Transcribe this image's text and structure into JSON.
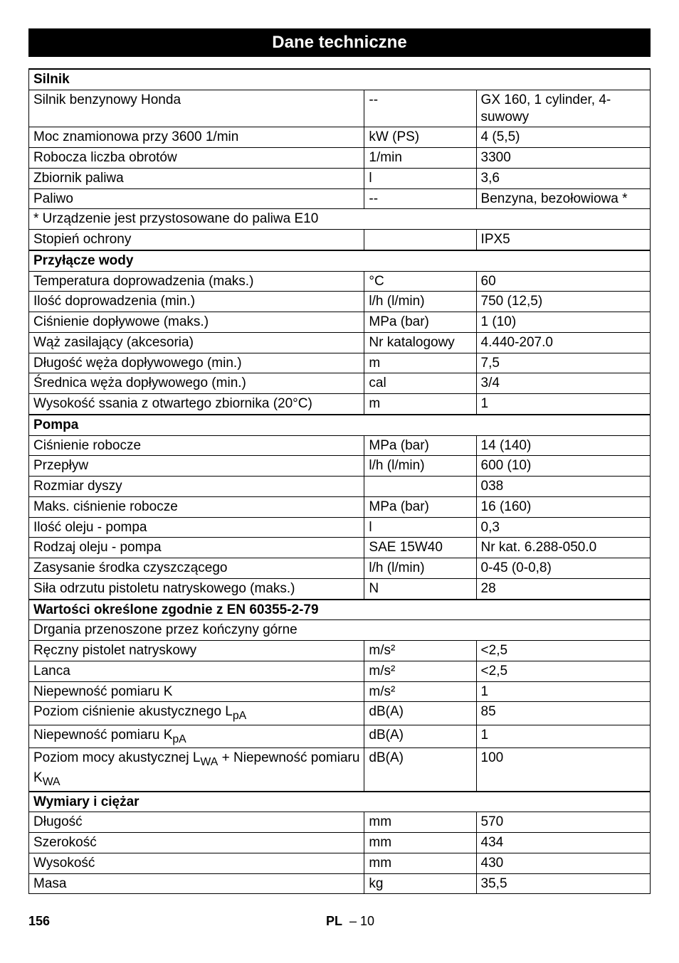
{
  "title": "Dane techniczne",
  "footer": {
    "page": "156",
    "lang": "PL",
    "langpage": "– 10"
  },
  "sections": [
    {
      "header": "Silnik",
      "rows": [
        {
          "p": "Silnik benzynowy Honda",
          "u": "--",
          "v": "GX 160, 1 cylinder, 4-suwowy"
        },
        {
          "p": "Moc znamionowa przy 3600 1/min",
          "u": "kW (PS)",
          "v": "4 (5,5)"
        },
        {
          "p": "Robocza liczba obrotów",
          "u": "1/min",
          "v": "3300"
        },
        {
          "p": "Zbiornik paliwa",
          "u": "l",
          "v": "3,6"
        },
        {
          "p": "Paliwo",
          "u": "--",
          "v": "Benzyna, bezołowiowa *"
        },
        {
          "p": "* Urządzenie jest przystosowane do paliwa E10",
          "span": 3
        },
        {
          "p": "Stopień ochrony",
          "u": "",
          "v": "IPX5"
        }
      ]
    },
    {
      "header": "Przyłącze wody",
      "rows": [
        {
          "p": "Temperatura doprowadzenia (maks.)",
          "u": "°C",
          "v": "60"
        },
        {
          "p": "Ilość doprowadzenia (min.)",
          "u": "l/h (l/min)",
          "v": "750 (12,5)"
        },
        {
          "p": "Ciśnienie dopływowe (maks.)",
          "u": "MPa (bar)",
          "v": "1 (10)"
        },
        {
          "p": "Wąż zasilający (akcesoria)",
          "u": "Nr katalogowy",
          "v": "4.440-207.0"
        },
        {
          "p": "Długość węża dopływowego (min.)",
          "u": "m",
          "v": "7,5"
        },
        {
          "p": "Średnica węża dopływowego (min.)",
          "u": "cal",
          "v": "3/4"
        },
        {
          "p": "Wysokość ssania z otwartego zbiornika (20°C)",
          "u": "m",
          "v": "1"
        }
      ]
    },
    {
      "header": "Pompa",
      "rows": [
        {
          "p": "Ciśnienie robocze",
          "u": "MPa (bar)",
          "v": "14 (140)"
        },
        {
          "p": "Przepływ",
          "u": "l/h (l/min)",
          "v": "600 (10)"
        },
        {
          "p": "Rozmiar dyszy",
          "u": "",
          "v": "038"
        },
        {
          "p": "Maks. ciśnienie robocze",
          "u": "MPa (bar)",
          "v": "16 (160)"
        },
        {
          "p": "Ilość oleju - pompa",
          "u": "l",
          "v": "0,3"
        },
        {
          "p": "Rodzaj oleju - pompa",
          "u": "SAE 15W40",
          "v": "Nr kat. 6.288-050.0"
        },
        {
          "p": "Zasysanie środka czyszczącego",
          "u": "l/h (l/min)",
          "v": "0-45 (0-0,8)"
        },
        {
          "p": "Siła odrzutu pistoletu natryskowego (maks.)",
          "u": "N",
          "v": "28"
        }
      ]
    },
    {
      "header": "Wartości określone zgodnie z EN 60355-2-79",
      "rows": [
        {
          "p": "Drgania przenoszone przez kończyny górne",
          "span": 3
        },
        {
          "p": "Ręczny pistolet natryskowy",
          "u": "m/s²",
          "v": "<2,5"
        },
        {
          "p": "Lanca",
          "u": "m/s²",
          "v": "<2,5"
        },
        {
          "p": "Niepewność pomiaru K",
          "u": "m/s²",
          "v": "1"
        },
        {
          "p_html": "Poziom ciśnienie akustycznego L<sub>pA</sub>",
          "u": "dB(A)",
          "v": "85"
        },
        {
          "p_html": "Niepewność pomiaru K<sub>pA</sub>",
          "u": "dB(A)",
          "v": "1"
        },
        {
          "p_html": "Poziom mocy akustycznej L<sub>WA</sub> + Niepewność pomiaru K<sub>WA</sub>",
          "u": "dB(A)",
          "v": "100"
        }
      ]
    },
    {
      "header": "Wymiary i ciężar",
      "rows": [
        {
          "p": "Długość",
          "u": "mm",
          "v": "570"
        },
        {
          "p": "Szerokość",
          "u": "mm",
          "v": "434"
        },
        {
          "p": "Wysokość",
          "u": "mm",
          "v": "430"
        },
        {
          "p": "Masa",
          "u": "kg",
          "v": "35,5"
        }
      ]
    }
  ]
}
